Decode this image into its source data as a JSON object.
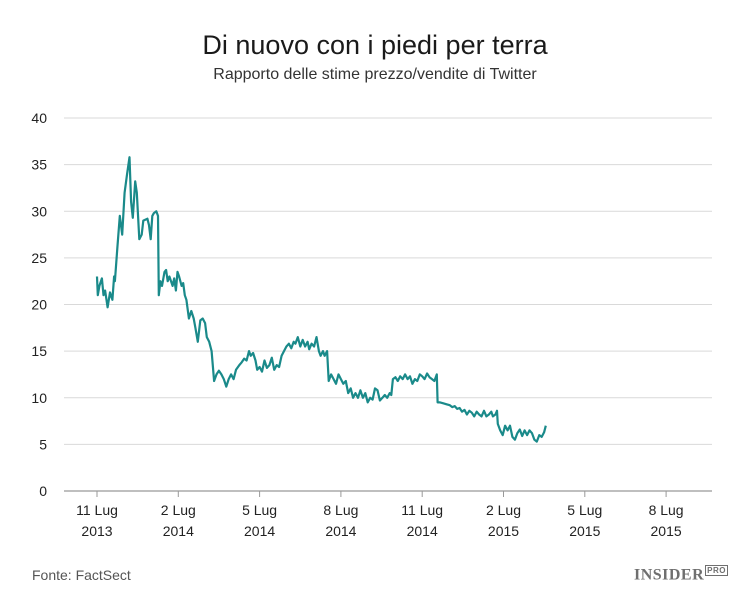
{
  "chart_data": {
    "type": "line",
    "title": "Di nuovo con i piedi per terra",
    "subtitle": "Rapporto delle stime prezzo/vendite di Twitter",
    "xlabel": "",
    "ylabel": "",
    "ylim": [
      0,
      40
    ],
    "yticks": [
      0,
      5,
      10,
      15,
      20,
      25,
      30,
      35,
      40
    ],
    "grid": "horizontal",
    "line_color": "#1a8a8a",
    "x_ticks": [
      {
        "line1": "11 Lug",
        "line2": "2013",
        "x": 0
      },
      {
        "line1": "2 Lug",
        "line2": "2014",
        "x": 1
      },
      {
        "line1": "5 Lug",
        "line2": "2014",
        "x": 2
      },
      {
        "line1": "8 Lug",
        "line2": "2014",
        "x": 3
      },
      {
        "line1": "11 Lug",
        "line2": "2014",
        "x": 4
      },
      {
        "line1": "2 Lug",
        "line2": "2015",
        "x": 5
      },
      {
        "line1": "5 Lug",
        "line2": "2015",
        "x": 6
      },
      {
        "line1": "8 Lug",
        "line2": "2015",
        "x": 7
      }
    ],
    "series": [
      {
        "values": [
          [
            0.0,
            23.0
          ],
          [
            0.01,
            21.0
          ],
          [
            0.03,
            22.0
          ],
          [
            0.06,
            22.8
          ],
          [
            0.08,
            21.0
          ],
          [
            0.1,
            21.5
          ],
          [
            0.13,
            19.7
          ],
          [
            0.16,
            21.3
          ],
          [
            0.19,
            20.5
          ],
          [
            0.21,
            23.0
          ],
          [
            0.22,
            22.5
          ],
          [
            0.25,
            26.0
          ],
          [
            0.28,
            29.5
          ],
          [
            0.31,
            27.5
          ],
          [
            0.34,
            32.0
          ],
          [
            0.37,
            34.0
          ],
          [
            0.4,
            35.8
          ],
          [
            0.42,
            31.0
          ],
          [
            0.44,
            29.3
          ],
          [
            0.47,
            33.2
          ],
          [
            0.49,
            32.0
          ],
          [
            0.52,
            27.0
          ],
          [
            0.55,
            27.5
          ],
          [
            0.57,
            29.0
          ],
          [
            0.62,
            29.2
          ],
          [
            0.64,
            28.5
          ],
          [
            0.66,
            27.0
          ],
          [
            0.68,
            29.5
          ],
          [
            0.7,
            29.8
          ],
          [
            0.73,
            30.0
          ],
          [
            0.75,
            29.5
          ],
          [
            0.76,
            21.0
          ],
          [
            0.78,
            22.5
          ],
          [
            0.8,
            22.0
          ],
          [
            0.83,
            23.5
          ],
          [
            0.85,
            23.7
          ],
          [
            0.87,
            22.5
          ],
          [
            0.89,
            23.0
          ],
          [
            0.91,
            22.5
          ],
          [
            0.93,
            22.0
          ],
          [
            0.95,
            22.8
          ],
          [
            0.97,
            21.5
          ],
          [
            0.99,
            23.5
          ],
          [
            1.01,
            23.0
          ],
          [
            1.04,
            22.0
          ],
          [
            1.06,
            22.3
          ],
          [
            1.08,
            21.0
          ],
          [
            1.1,
            20.5
          ],
          [
            1.13,
            18.5
          ],
          [
            1.16,
            19.3
          ],
          [
            1.19,
            18.5
          ],
          [
            1.21,
            17.5
          ],
          [
            1.24,
            16.0
          ],
          [
            1.27,
            18.3
          ],
          [
            1.3,
            18.5
          ],
          [
            1.33,
            18.0
          ],
          [
            1.35,
            16.5
          ],
          [
            1.38,
            16.0
          ],
          [
            1.41,
            15.0
          ],
          [
            1.44,
            11.8
          ],
          [
            1.47,
            12.5
          ],
          [
            1.5,
            12.9
          ],
          [
            1.53,
            12.5
          ],
          [
            1.56,
            12.0
          ],
          [
            1.59,
            11.2
          ],
          [
            1.62,
            12.0
          ],
          [
            1.65,
            12.5
          ],
          [
            1.68,
            12.0
          ],
          [
            1.71,
            13.0
          ],
          [
            1.75,
            13.5
          ],
          [
            1.78,
            13.8
          ],
          [
            1.81,
            14.2
          ],
          [
            1.84,
            14.0
          ],
          [
            1.87,
            15.0
          ],
          [
            1.89,
            14.5
          ],
          [
            1.92,
            14.8
          ],
          [
            1.95,
            14.0
          ],
          [
            1.97,
            13.0
          ],
          [
            2.0,
            13.3
          ],
          [
            2.03,
            12.8
          ],
          [
            2.06,
            14.0
          ],
          [
            2.09,
            13.2
          ],
          [
            2.12,
            13.5
          ],
          [
            2.15,
            14.3
          ],
          [
            2.18,
            13.0
          ],
          [
            2.21,
            13.5
          ],
          [
            2.24,
            13.3
          ],
          [
            2.27,
            14.5
          ],
          [
            2.3,
            15.0
          ],
          [
            2.33,
            15.5
          ],
          [
            2.36,
            15.8
          ],
          [
            2.39,
            15.3
          ],
          [
            2.42,
            16.0
          ],
          [
            2.44,
            15.8
          ],
          [
            2.47,
            16.5
          ],
          [
            2.5,
            15.5
          ],
          [
            2.53,
            16.2
          ],
          [
            2.56,
            15.5
          ],
          [
            2.59,
            16.0
          ],
          [
            2.61,
            15.2
          ],
          [
            2.64,
            15.8
          ],
          [
            2.67,
            15.5
          ],
          [
            2.7,
            16.5
          ],
          [
            2.73,
            15.0
          ],
          [
            2.75,
            14.5
          ],
          [
            2.78,
            15.0
          ],
          [
            2.8,
            14.5
          ],
          [
            2.83,
            15.0
          ],
          [
            2.85,
            11.8
          ],
          [
            2.88,
            12.5
          ],
          [
            2.91,
            12.0
          ],
          [
            2.94,
            11.5
          ],
          [
            2.97,
            12.5
          ],
          [
            3.0,
            12.0
          ],
          [
            3.03,
            11.5
          ],
          [
            3.06,
            11.8
          ],
          [
            3.09,
            10.5
          ],
          [
            3.12,
            11.0
          ],
          [
            3.15,
            10.0
          ],
          [
            3.18,
            10.5
          ],
          [
            3.21,
            10.0
          ],
          [
            3.24,
            10.8
          ],
          [
            3.27,
            10.0
          ],
          [
            3.3,
            10.5
          ],
          [
            3.33,
            9.5
          ],
          [
            3.36,
            10.0
          ],
          [
            3.39,
            9.8
          ],
          [
            3.42,
            11.0
          ],
          [
            3.45,
            10.8
          ],
          [
            3.48,
            9.7
          ],
          [
            3.51,
            10.0
          ],
          [
            3.54,
            10.3
          ],
          [
            3.57,
            10.0
          ],
          [
            3.6,
            10.5
          ],
          [
            3.62,
            10.3
          ],
          [
            3.64,
            12.0
          ],
          [
            3.67,
            12.2
          ],
          [
            3.7,
            11.8
          ],
          [
            3.73,
            12.3
          ],
          [
            3.76,
            12.0
          ],
          [
            3.79,
            12.5
          ],
          [
            3.82,
            12.0
          ],
          [
            3.85,
            12.3
          ],
          [
            3.88,
            11.5
          ],
          [
            3.91,
            12.0
          ],
          [
            3.94,
            11.8
          ],
          [
            3.97,
            12.5
          ],
          [
            4.0,
            12.3
          ],
          [
            4.03,
            12.0
          ],
          [
            4.06,
            12.6
          ],
          [
            4.09,
            12.2
          ],
          [
            4.12,
            12.0
          ],
          [
            4.15,
            11.8
          ],
          [
            4.18,
            12.5
          ],
          [
            4.19,
            9.5
          ],
          [
            4.22,
            9.5
          ],
          [
            4.26,
            9.4
          ],
          [
            4.3,
            9.3
          ],
          [
            4.34,
            9.2
          ],
          [
            4.37,
            9.0
          ],
          [
            4.4,
            9.1
          ],
          [
            4.43,
            8.8
          ],
          [
            4.46,
            8.9
          ],
          [
            4.49,
            8.5
          ],
          [
            4.52,
            8.7
          ],
          [
            4.55,
            8.2
          ],
          [
            4.58,
            8.6
          ],
          [
            4.61,
            8.4
          ],
          [
            4.64,
            8.0
          ],
          [
            4.67,
            8.5
          ],
          [
            4.7,
            8.2
          ],
          [
            4.73,
            8.0
          ],
          [
            4.76,
            8.6
          ],
          [
            4.79,
            8.0
          ],
          [
            4.82,
            8.2
          ],
          [
            4.85,
            8.5
          ],
          [
            4.87,
            8.0
          ],
          [
            4.9,
            8.2
          ],
          [
            4.92,
            8.6
          ],
          [
            4.93,
            7.2
          ],
          [
            4.96,
            6.5
          ],
          [
            4.99,
            6.0
          ],
          [
            5.02,
            7.0
          ],
          [
            5.05,
            6.5
          ],
          [
            5.08,
            7.0
          ],
          [
            5.11,
            5.8
          ],
          [
            5.14,
            5.5
          ],
          [
            5.17,
            6.2
          ],
          [
            5.2,
            6.6
          ],
          [
            5.23,
            5.9
          ],
          [
            5.26,
            6.5
          ],
          [
            5.29,
            6.0
          ],
          [
            5.32,
            6.5
          ],
          [
            5.35,
            6.2
          ],
          [
            5.38,
            5.5
          ],
          [
            5.41,
            5.3
          ],
          [
            5.44,
            6.0
          ],
          [
            5.47,
            5.8
          ],
          [
            5.5,
            6.3
          ],
          [
            5.52,
            7.0
          ]
        ]
      }
    ]
  },
  "footer": {
    "source": "Fonte: FactSect",
    "brand": "INSIDER",
    "brand_suffix": "PRO"
  }
}
